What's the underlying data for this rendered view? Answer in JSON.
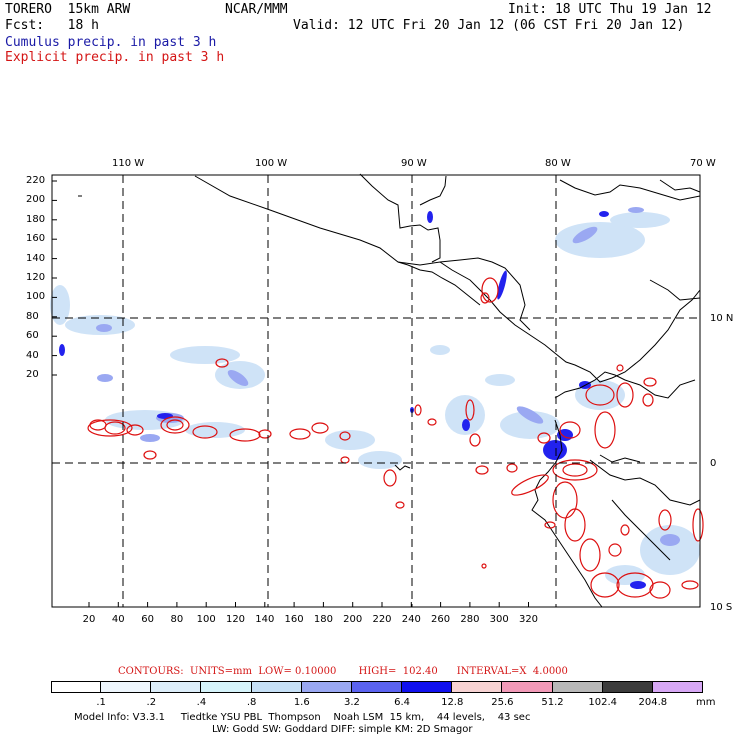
{
  "header": {
    "model": "TORERO  15km ARW",
    "org": "NCAR/MMM",
    "init": "Init: 18 UTC Thu 19 Jan 12",
    "fcst": "Fcst:   18 h",
    "valid": "Valid: 12 UTC Fri 20 Jan 12 (06 CST Fri 20 Jan 12)",
    "line_blue": "Cumulus precip. in past 3 h",
    "line_red": "Explicit precip. in past 3 h"
  },
  "map": {
    "lon_labels": [
      "110 W",
      "100 W",
      "90 W",
      "80 W",
      "70 W"
    ],
    "lat_labels": [
      "10 N",
      "0",
      "10 S"
    ],
    "y_ticks": [
      "220",
      "200",
      "180",
      "160",
      "140",
      "120",
      "100",
      "80",
      "60",
      "40",
      "20"
    ],
    "x_ticks": [
      "20",
      "40",
      "60",
      "80",
      "100",
      "120",
      "140",
      "160",
      "180",
      "200",
      "220",
      "240",
      "260",
      "280",
      "300",
      "320"
    ],
    "colors": {
      "coast": "#000000",
      "grid": "#000000",
      "light_blue": "#cfe3f7",
      "mid_blue": "#9aa8f2",
      "deep_blue": "#2020ee",
      "contour_red": "#dd1010"
    }
  },
  "contours": {
    "label": "CONTOURS:  UNITS=mm  LOW= 0.10000       HIGH=  102.40      INTERVAL=X  4.0000"
  },
  "colorbar": {
    "labels": [
      ".1",
      ".2",
      ".4",
      ".8",
      "1.6",
      "3.2",
      "6.4",
      "12.8",
      "25.6",
      "51.2",
      "102.4",
      "204.8"
    ],
    "unit": "mm",
    "colors": [
      "#ffffff",
      "#eef6fd",
      "#ddeefa",
      "#d6f4fb",
      "#c6e0f6",
      "#9aa8f2",
      "#5b63f0",
      "#1010ee",
      "#f7d3d3",
      "#f29ab8",
      "#b8b8b8",
      "#3c3c3c",
      "#d7a8f5"
    ]
  },
  "footer": {
    "line1": "Model Info: V3.3.1     Tiedtke YSU PBL  Thompson    Noah LSM  15 km,    44 levels,    43 sec",
    "line2": "LW: Godd SW: Goddard DIFF: simple KM: 2D Smagor"
  }
}
